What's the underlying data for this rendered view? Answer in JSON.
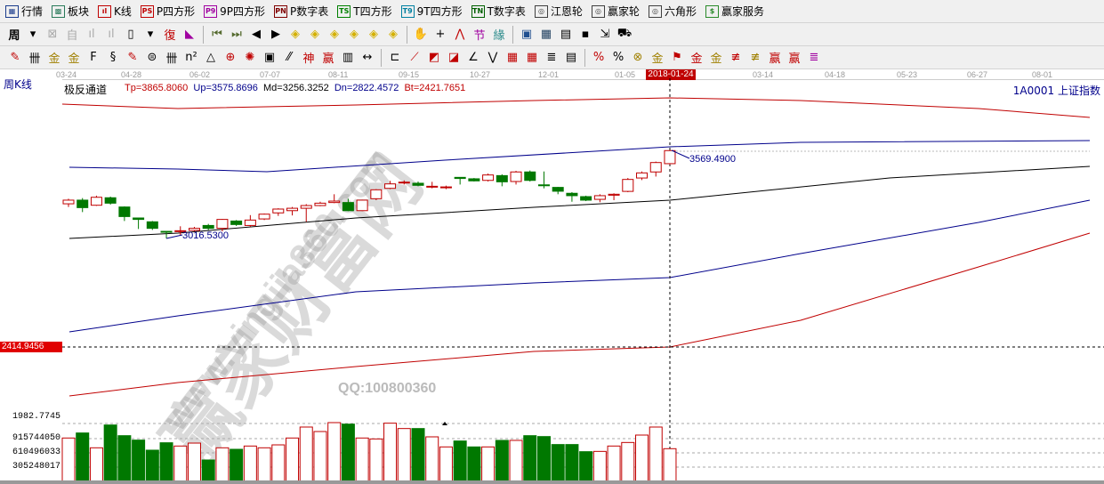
{
  "menu": [
    {
      "label": "行情",
      "icon": "table-icon",
      "color": "#1a3c8c",
      "glyph": "▦"
    },
    {
      "label": "板块",
      "icon": "blocks-icon",
      "color": "#2a7a5a",
      "glyph": "▩"
    },
    {
      "label": "K线",
      "icon": "kline-icon",
      "color": "#c00000",
      "glyph": "ıl"
    },
    {
      "label": "P四方形",
      "icon": "ps-icon",
      "color": "#c00000",
      "glyph": "PS"
    },
    {
      "label": "9P四方形",
      "icon": "p9-icon",
      "color": "#a000a0",
      "glyph": "P9"
    },
    {
      "label": "P数字表",
      "icon": "pn-icon",
      "color": "#800000",
      "glyph": "PN"
    },
    {
      "label": "T四方形",
      "icon": "ts-icon",
      "color": "#008000",
      "glyph": "TS"
    },
    {
      "label": "9T四方形",
      "icon": "t9-icon",
      "color": "#0080a0",
      "glyph": "T9"
    },
    {
      "label": "T数字表",
      "icon": "tn-icon",
      "color": "#006000",
      "glyph": "TN"
    },
    {
      "label": "江恩轮",
      "icon": "gann-wheel-icon",
      "color": "#404040",
      "glyph": "◎"
    },
    {
      "label": "赢家轮",
      "icon": "winner-wheel-icon",
      "color": "#404040",
      "glyph": "◎"
    },
    {
      "label": "六角形",
      "icon": "hexagon-icon",
      "color": "#404040",
      "glyph": "◎"
    },
    {
      "label": "赢家服务",
      "icon": "dollar-icon",
      "color": "#2a8a2a",
      "glyph": "$"
    }
  ],
  "toolbar2": {
    "period_label": "周",
    "tools": [
      {
        "icon": "chevron-down-icon",
        "glyph": "▾",
        "color": "#000"
      },
      {
        "icon": "window-icon",
        "glyph": "⊠",
        "color": "#aaa"
      },
      {
        "icon": "self-select-icon",
        "glyph": "自",
        "color": "#aaa"
      },
      {
        "icon": "chart3-icon",
        "glyph": "ıl",
        "color": "#aaa"
      },
      {
        "icon": "chart9-icon",
        "glyph": "ıl",
        "color": "#aaa"
      },
      {
        "icon": "candle-icon",
        "glyph": "▯",
        "color": "#000"
      },
      {
        "icon": "chevron-down-icon",
        "glyph": "▾",
        "color": "#000"
      },
      {
        "icon": "restore-icon",
        "glyph": "復",
        "color": "#c00000"
      },
      {
        "icon": "flag-icon",
        "glyph": "◣",
        "color": "#a000a0"
      },
      {
        "icon": "first-icon",
        "glyph": "⏮",
        "color": "#556b2f"
      },
      {
        "icon": "last-icon",
        "glyph": "⏭",
        "color": "#556b2f"
      },
      {
        "icon": "prev-icon",
        "glyph": "◀",
        "color": "#000"
      },
      {
        "icon": "next-icon",
        "glyph": "▶",
        "color": "#000"
      },
      {
        "icon": "zoom-left-icon",
        "glyph": "◈",
        "color": "#d4b000"
      },
      {
        "icon": "zoom-right-icon",
        "glyph": "◈",
        "color": "#d4b000"
      },
      {
        "icon": "zoom-both-icon",
        "glyph": "◈",
        "color": "#d4b000"
      },
      {
        "icon": "zoom-in-icon",
        "glyph": "◈",
        "color": "#d4b000"
      },
      {
        "icon": "zoom-out-icon",
        "glyph": "◈",
        "color": "#d4b000"
      },
      {
        "icon": "zoom-all-icon",
        "glyph": "◈",
        "color": "#d4b000"
      },
      {
        "icon": "hand-icon",
        "glyph": "✋",
        "color": "#000"
      },
      {
        "icon": "crosshair-icon",
        "glyph": "+",
        "color": "#000"
      },
      {
        "icon": "line-icon",
        "glyph": "⋀",
        "color": "#c00000"
      },
      {
        "icon": "node-icon",
        "glyph": "节",
        "color": "#a000a0"
      },
      {
        "icon": "chinese-icon",
        "glyph": "緣",
        "color": "#2a8a8a"
      },
      {
        "icon": "calendar-icon",
        "glyph": "▣",
        "color": "#205090"
      },
      {
        "icon": "calculator-icon",
        "glyph": "▦",
        "color": "#204060"
      },
      {
        "icon": "notebook-icon",
        "glyph": "▤",
        "color": "#000"
      },
      {
        "icon": "save-icon",
        "glyph": "▪",
        "color": "#000"
      },
      {
        "icon": "export-icon",
        "glyph": "⇲",
        "color": "#000"
      },
      {
        "icon": "truck-icon",
        "glyph": "⛟",
        "color": "#000"
      }
    ]
  },
  "toolbar3": {
    "tools": [
      {
        "icon": "pencil-icon",
        "glyph": "✎",
        "color": "#c00000"
      },
      {
        "icon": "grid-lines-icon",
        "glyph": "卌",
        "color": "#000"
      },
      {
        "icon": "gold-icon",
        "glyph": "金",
        "color": "#a08000"
      },
      {
        "icon": "gold2-icon",
        "glyph": "金",
        "color": "#a08000"
      },
      {
        "icon": "fib-icon",
        "glyph": "F",
        "color": "#000"
      },
      {
        "icon": "spiral-icon",
        "glyph": "§",
        "color": "#000"
      },
      {
        "icon": "pen-ruler-icon",
        "glyph": "✎",
        "color": "#c00000"
      },
      {
        "icon": "circle-icon",
        "glyph": "⊜",
        "color": "#000"
      },
      {
        "icon": "parallel-icon",
        "glyph": "卌",
        "color": "#000"
      },
      {
        "icon": "n2-icon",
        "glyph": "n²",
        "color": "#000"
      },
      {
        "icon": "triangle-icon",
        "glyph": "△",
        "color": "#000"
      },
      {
        "icon": "target-icon",
        "glyph": "⊕",
        "color": "#c00000"
      },
      {
        "icon": "web-icon",
        "glyph": "✺",
        "color": "#c00000"
      },
      {
        "icon": "square-icon",
        "glyph": "▣",
        "color": "#000"
      },
      {
        "icon": "slash-icon",
        "glyph": "⁄⁄",
        "color": "#000"
      },
      {
        "icon": "god-icon",
        "glyph": "神",
        "color": "#c00000"
      },
      {
        "icon": "win-icon",
        "glyph": "赢",
        "color": "#c00000"
      },
      {
        "icon": "ruler-icon",
        "glyph": "▥",
        "color": "#000"
      },
      {
        "icon": "measure-icon",
        "glyph": "↔",
        "color": "#000"
      },
      {
        "icon": "box-line-icon",
        "glyph": "⊏",
        "color": "#000"
      },
      {
        "icon": "fan-icon",
        "glyph": "⟋",
        "color": "#c00000"
      },
      {
        "icon": "fan2-icon",
        "glyph": "◩",
        "color": "#c00000"
      },
      {
        "icon": "fan3-icon",
        "glyph": "◪",
        "color": "#c00000"
      },
      {
        "icon": "angle-icon",
        "glyph": "∠",
        "color": "#000"
      },
      {
        "icon": "wave-icon",
        "glyph": "⋁",
        "color": "#000"
      },
      {
        "icon": "table-grid-icon",
        "glyph": "▦",
        "color": "#c00000"
      },
      {
        "icon": "table-grid2-icon",
        "glyph": "▦",
        "color": "#c00000"
      },
      {
        "icon": "lines-icon",
        "glyph": "≣",
        "color": "#000"
      },
      {
        "icon": "list-icon",
        "glyph": "▤",
        "color": "#000"
      },
      {
        "icon": "percent-red-icon",
        "glyph": "%",
        "color": "#c00000"
      },
      {
        "icon": "percent-icon",
        "glyph": "%",
        "color": "#000"
      },
      {
        "icon": "gold-circle-icon",
        "glyph": "⊗",
        "color": "#a08000"
      },
      {
        "icon": "gold-line-icon",
        "glyph": "金",
        "color": "#a08000"
      },
      {
        "icon": "flag-red-icon",
        "glyph": "⚑",
        "color": "#c00000"
      },
      {
        "icon": "gold-box-icon",
        "glyph": "金",
        "color": "#c00000"
      },
      {
        "icon": "gold-box2-icon",
        "glyph": "金",
        "color": "#a08000"
      },
      {
        "icon": "step-icon",
        "glyph": "≢",
        "color": "#c00000"
      },
      {
        "icon": "step2-icon",
        "glyph": "≢",
        "color": "#a08000"
      },
      {
        "icon": "win-line-icon",
        "glyph": "赢",
        "color": "#c00000"
      },
      {
        "icon": "win-line2-icon",
        "glyph": "赢",
        "color": "#c00000"
      },
      {
        "icon": "lines2-icon",
        "glyph": "≣",
        "color": "#a000a0"
      }
    ]
  },
  "axis": {
    "dates": [
      "03-24",
      "04-28",
      "06-02",
      "07-07",
      "08-11",
      "09-15",
      "10-27",
      "12-01",
      "01-05",
      "03-14",
      "04-18",
      "05-23",
      "06-27",
      "08-01"
    ],
    "cursor_date": "2018-01-24"
  },
  "header": {
    "period": "周K线",
    "indicator_name": "极反通道",
    "tp": "Tp=3865.8060",
    "up": "Up=3575.8696",
    "md": "Md=3256.3252",
    "dn": "Dn=2822.4572",
    "bt": "Bt=2421.7651",
    "symbol": "1A0001  上证指数"
  },
  "colors": {
    "up": "#c00000",
    "down": "#007800",
    "tp": "#c00000",
    "up_line": "#00008b",
    "md": "#000000",
    "dn": "#00008b",
    "bt": "#c00000"
  },
  "chart_data": {
    "type": "candlestick",
    "high_label": "3569.4900",
    "low_label": "3016.5300",
    "cursor_price": "2414.9456",
    "candles": [
      [
        3234,
        3266,
        3214,
        3257
      ],
      [
        3257,
        3270,
        3182,
        3210
      ],
      [
        3225,
        3285,
        3221,
        3275
      ],
      [
        3272,
        3279,
        3229,
        3238
      ],
      [
        3214,
        3218,
        3126,
        3154
      ],
      [
        3145,
        3145,
        3076,
        3136
      ],
      [
        3121,
        3126,
        3070,
        3080
      ],
      [
        3061,
        3061,
        3016.53,
        3057
      ],
      [
        3061,
        3093,
        3033,
        3065
      ],
      [
        3067,
        3089,
        3061,
        3080
      ],
      [
        3098,
        3108,
        3070,
        3080
      ],
      [
        3080,
        3139,
        3061,
        3136
      ],
      [
        3126,
        3132,
        3095,
        3104
      ],
      [
        3098,
        3163,
        3089,
        3132
      ],
      [
        3139,
        3173,
        3132,
        3169
      ],
      [
        3177,
        3206,
        3158,
        3201
      ],
      [
        3191,
        3214,
        3161,
        3206
      ],
      [
        3206,
        3232,
        3121,
        3223
      ],
      [
        3223,
        3247,
        3219,
        3238
      ],
      [
        3242,
        3294,
        3238,
        3251
      ],
      [
        3242,
        3266,
        3188,
        3191
      ],
      [
        3191,
        3260,
        3188,
        3257
      ],
      [
        3266,
        3326,
        3257,
        3322
      ],
      [
        3331,
        3378,
        3326,
        3359
      ],
      [
        3368,
        3381,
        3355,
        3370
      ],
      [
        3363,
        3374,
        3344,
        3350
      ],
      [
        3340,
        3372,
        3331,
        3344
      ],
      [
        3338,
        3348,
        3326,
        3340
      ],
      [
        3400,
        3400,
        3355,
        3393
      ],
      [
        3391,
        3396,
        3374,
        3378
      ],
      [
        3381,
        3424,
        3374,
        3415
      ],
      [
        3411,
        3419,
        3344,
        3372
      ],
      [
        3374,
        3441,
        3355,
        3434
      ],
      [
        3434,
        3443,
        3374,
        3381
      ],
      [
        3353,
        3437,
        3331,
        3350
      ],
      [
        3337,
        3340,
        3294,
        3313
      ],
      [
        3300,
        3307,
        3247,
        3285
      ],
      [
        3279,
        3285,
        3251,
        3257
      ],
      [
        3262,
        3294,
        3244,
        3285
      ],
      [
        3288,
        3300,
        3257,
        3294
      ],
      [
        3312,
        3396,
        3307,
        3387
      ],
      [
        3396,
        3437,
        3383,
        3428
      ],
      [
        3434,
        3499,
        3405,
        3493
      ],
      [
        3486,
        3569.49,
        3480,
        3568
      ]
    ],
    "volume_ticks": [
      "1982.7745",
      "915744050",
      "610496033",
      "305248017"
    ],
    "volume_millions": [
      929,
      1037,
      719,
      1208,
      979,
      884,
      668,
      827,
      757,
      820,
      458,
      719,
      687,
      757,
      719,
      782,
      929,
      1164,
      1068,
      1259,
      1227,
      929,
      909,
      1247,
      1132,
      1132,
      954,
      738,
      865,
      738,
      738,
      878,
      878,
      979,
      960,
      789,
      789,
      636,
      642,
      757,
      833,
      992,
      1164,
      700
    ]
  },
  "watermark": {
    "brand": "赢家财富网",
    "url": "www.yingjia360.com",
    "qq": "QQ:100800360"
  }
}
